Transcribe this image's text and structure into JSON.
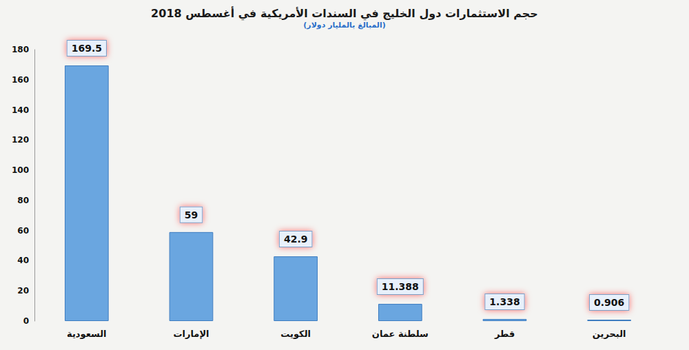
{
  "chart_data": {
    "type": "bar",
    "title": "حجم الاستثمارات دول الخليج في السندات الأمريكية في أغسطس 2018",
    "subtitle": "(المبالغ بالمليار دولار)",
    "categories": [
      "السعودية",
      "الإمارات",
      "الكويت",
      "سلطنة عمان",
      "قطر",
      "البحرين"
    ],
    "values": [
      169.5,
      59,
      42.9,
      11.388,
      1.338,
      0.906
    ],
    "color": "#6aa6e0",
    "ylim": [
      0,
      180
    ],
    "yticks": [
      0,
      20,
      40,
      60,
      80,
      100,
      120,
      140,
      160,
      180
    ],
    "grid": false,
    "data_labels": true
  }
}
